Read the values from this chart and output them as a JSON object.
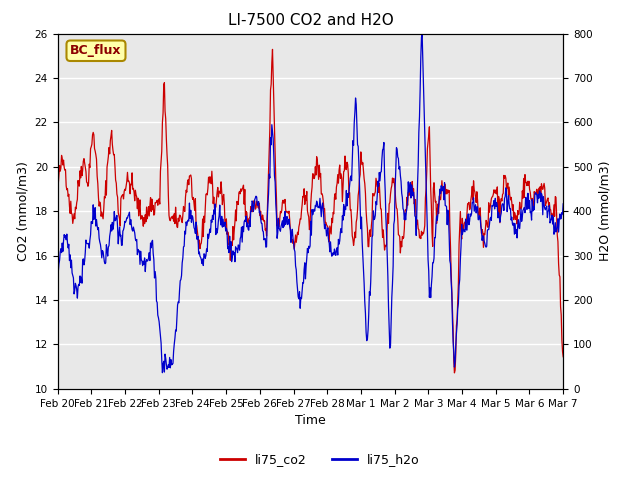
{
  "title": "LI-7500 CO2 and H2O",
  "xlabel": "Time",
  "ylabel_left": "CO2 (mmol/m3)",
  "ylabel_right": "H2O (mmol/m3)",
  "ylim_left": [
    10,
    26
  ],
  "ylim_right": [
    0,
    800
  ],
  "yticks_left": [
    10,
    12,
    14,
    16,
    18,
    20,
    22,
    24,
    26
  ],
  "yticks_right": [
    0,
    100,
    200,
    300,
    400,
    500,
    600,
    700,
    800
  ],
  "xtick_labels": [
    "Feb 20",
    "Feb 21",
    "Feb 22",
    "Feb 23",
    "Feb 24",
    "Feb 25",
    "Feb 26",
    "Feb 27",
    "Feb 28",
    "Mar 1",
    "Mar 2",
    "Mar 3",
    "Mar 4",
    "Mar 5",
    "Mar 6",
    "Mar 7"
  ],
  "color_co2": "#cc0000",
  "color_h2o": "#0000cc",
  "label_co2": "li75_co2",
  "label_h2o": "li75_h2o",
  "annotation_text": "BC_flux",
  "annotation_bg": "#ffffaa",
  "annotation_border": "#aa8800",
  "bg_color": "#e8e8e8",
  "grid_color": "#ffffff",
  "title_fontsize": 11,
  "axis_fontsize": 9,
  "tick_fontsize": 7.5,
  "legend_fontsize": 9
}
